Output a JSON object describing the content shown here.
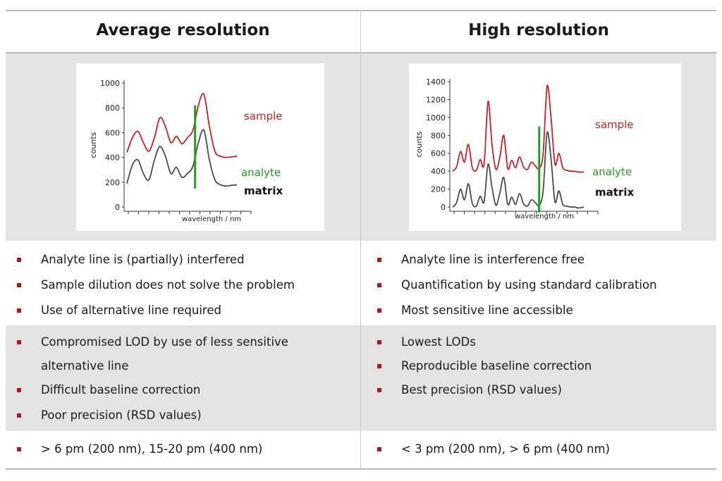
{
  "columns": [
    {
      "title": "Average resolution",
      "row1": [
        "Analyte line is (partially) interfered",
        "Sample dilution does not solve the problem",
        "Use of alternative line required"
      ],
      "row2": [
        [
          "Compromised LOD by use of less sensitive",
          "alternative line"
        ],
        [
          "Difficult baseline correction"
        ],
        [
          "Poor precision (RSD values)"
        ]
      ],
      "row3": [
        "> 6 pm (200 nm), 15-20 pm (400 nm)"
      ]
    },
    {
      "title": "High resolution",
      "row1": [
        "Analyte line is interference free",
        "Quantification by using standard calibration",
        "Most sensitive line accessible"
      ],
      "row2": [
        [
          "Lowest LODs"
        ],
        [
          "Reproducible baseline correction"
        ],
        [
          "Best precision (RSD values)"
        ]
      ],
      "row3": [
        "< 3 pm (200 nm), > 6 pm (400 nm)"
      ]
    }
  ],
  "colors": {
    "sample": "#cc1f26",
    "analyte": "#1e9e22",
    "matrix": "#4a4a4a",
    "bullet": "#b3141c",
    "band": "#e3e3e4"
  },
  "chart_data": [
    {
      "type": "line",
      "title": "",
      "xlabel": "wavelength / nm",
      "ylabel": "counts",
      "yticks": [
        "0",
        "200",
        "400",
        "600",
        "800",
        "1000"
      ],
      "ylim": [
        0,
        1000
      ],
      "xlim": [
        0,
        1
      ],
      "analyte_line_x": 0.62,
      "analyte_line_range": [
        150,
        820
      ],
      "series": [
        {
          "name": "sample",
          "x": [
            0.0,
            0.05,
            0.1,
            0.15,
            0.2,
            0.25,
            0.3,
            0.35,
            0.4,
            0.45,
            0.5,
            0.55,
            0.6,
            0.65,
            0.7,
            0.75,
            0.8,
            0.85,
            0.9,
            0.95,
            1.0
          ],
          "y": [
            440,
            560,
            610,
            520,
            450,
            560,
            720,
            650,
            520,
            570,
            510,
            560,
            620,
            820,
            910,
            650,
            450,
            410,
            400,
            405,
            410
          ]
        },
        {
          "name": "matrix",
          "x": [
            0.0,
            0.05,
            0.1,
            0.15,
            0.2,
            0.25,
            0.3,
            0.35,
            0.4,
            0.45,
            0.5,
            0.55,
            0.6,
            0.65,
            0.7,
            0.75,
            0.8,
            0.85,
            0.9,
            0.95,
            1.0
          ],
          "y": [
            190,
            340,
            380,
            270,
            220,
            380,
            490,
            410,
            270,
            320,
            240,
            270,
            330,
            520,
            620,
            380,
            220,
            180,
            170,
            175,
            180
          ]
        }
      ],
      "labels": {
        "sample": "sample",
        "analyte": "analyte",
        "matrix": "matrix"
      }
    },
    {
      "type": "line",
      "title": "",
      "xlabel": "wavelength / nm",
      "ylabel": "counts",
      "yticks": [
        "0",
        "200",
        "400",
        "600",
        "800",
        "1000",
        "1200",
        "1400"
      ],
      "ylim": [
        0,
        1400
      ],
      "xlim": [
        0,
        1
      ],
      "analyte_line_x": 0.66,
      "analyte_line_range": [
        -60,
        900
      ],
      "series": [
        {
          "name": "sample",
          "x": [
            0.0,
            0.03,
            0.06,
            0.09,
            0.12,
            0.15,
            0.18,
            0.21,
            0.24,
            0.27,
            0.3,
            0.33,
            0.36,
            0.39,
            0.42,
            0.45,
            0.48,
            0.51,
            0.54,
            0.57,
            0.6,
            0.63,
            0.66,
            0.69,
            0.72,
            0.75,
            0.78,
            0.81,
            0.84,
            0.87,
            0.9,
            0.93,
            0.96,
            1.0
          ],
          "y": [
            400,
            450,
            620,
            500,
            700,
            440,
            410,
            530,
            480,
            1180,
            700,
            420,
            560,
            800,
            430,
            520,
            440,
            560,
            450,
            420,
            500,
            460,
            430,
            600,
            1350,
            1000,
            480,
            600,
            440,
            410,
            400,
            400,
            390,
            390
          ]
        },
        {
          "name": "matrix",
          "x": [
            0.0,
            0.03,
            0.06,
            0.09,
            0.12,
            0.15,
            0.18,
            0.21,
            0.24,
            0.27,
            0.3,
            0.33,
            0.36,
            0.39,
            0.42,
            0.45,
            0.48,
            0.51,
            0.54,
            0.57,
            0.6,
            0.63,
            0.66,
            0.69,
            0.72,
            0.75,
            0.78,
            0.81,
            0.84,
            0.87,
            0.9,
            0.93,
            0.96,
            1.0
          ],
          "y": [
            0,
            50,
            200,
            80,
            260,
            40,
            10,
            120,
            60,
            480,
            220,
            20,
            160,
            330,
            30,
            110,
            30,
            150,
            40,
            10,
            80,
            50,
            20,
            180,
            830,
            540,
            60,
            180,
            30,
            10,
            0,
            0,
            -10,
            0
          ]
        }
      ],
      "labels": {
        "sample": "sample",
        "analyte": "analyte",
        "matrix": "matrix"
      }
    }
  ]
}
